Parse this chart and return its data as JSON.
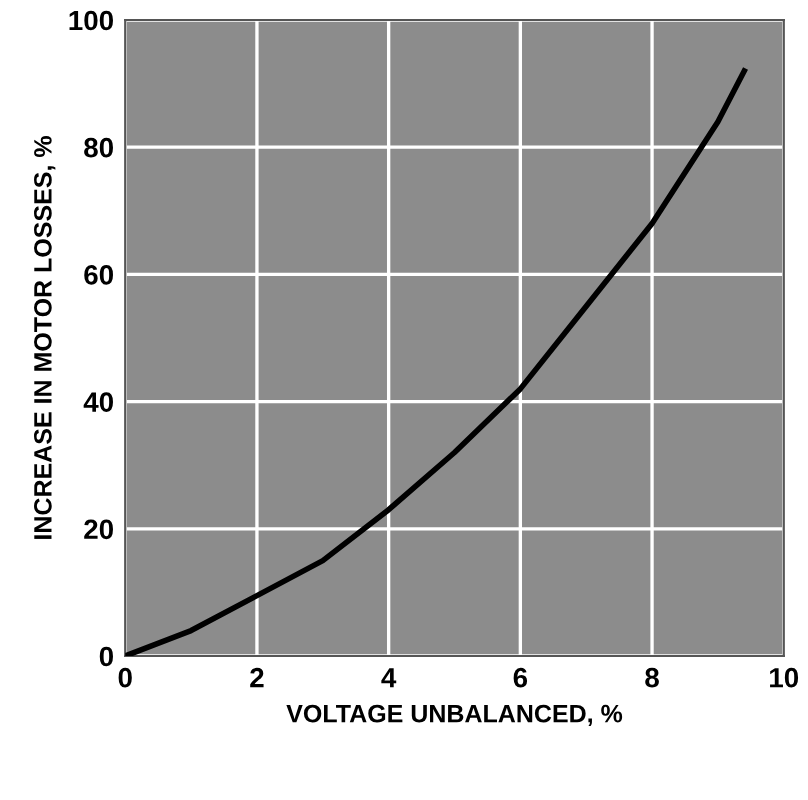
{
  "chart_data": {
    "type": "line",
    "xlabel": "VOLTAGE UNBALANCED, %",
    "ylabel": "INCREASE IN MOTOR LOSSES, %",
    "x": [
      0,
      1,
      2,
      3,
      4,
      5,
      6,
      7,
      8,
      9,
      9.4
    ],
    "series": [
      {
        "color": "#000000",
        "values": [
          0,
          4,
          9.5,
          15,
          23,
          32,
          42,
          55,
          68,
          84,
          92
        ]
      }
    ],
    "xlim": [
      0,
      10
    ],
    "ylim": [
      0,
      100
    ],
    "xticks": [
      0,
      2,
      4,
      6,
      8,
      10
    ],
    "yticks": [
      0,
      20,
      40,
      60,
      80,
      100
    ],
    "grid": true,
    "marker": "none",
    "line_style": "solid"
  }
}
